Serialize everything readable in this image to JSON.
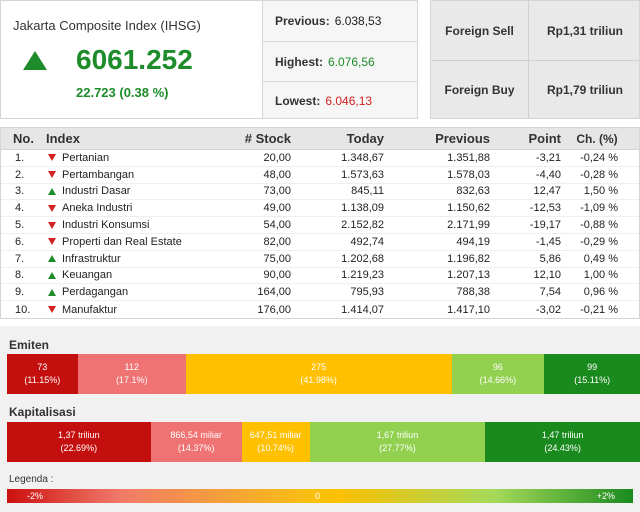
{
  "index": {
    "title": "Jakarta Composite Index (IHSG)",
    "value": "6061.252",
    "change": "22.723 (0.38 %)"
  },
  "stats": [
    {
      "label": "Previous:",
      "value": "6.038,53",
      "color": "#222222"
    },
    {
      "label": "Highest:",
      "value": "6.076,56",
      "color": "#1e8c2a"
    },
    {
      "label": "Lowest:",
      "value": "6.046,13",
      "color": "#d42121"
    }
  ],
  "foreign": [
    {
      "label": "Foreign Sell",
      "value": "Rp1,31 triliun"
    },
    {
      "label": "Foreign Buy",
      "value": "Rp1,79 triliun"
    }
  ],
  "table": {
    "headers": [
      "No.",
      "Index",
      "# Stock",
      "Today",
      "Previous",
      "Point",
      "Ch. (%)"
    ],
    "rows": [
      {
        "no": "1.",
        "dir": "down",
        "name": "Pertanian",
        "stock": "20,00",
        "today": "1.348,67",
        "prev": "1.351,88",
        "point": "-3,21",
        "ch": "-0,24 %"
      },
      {
        "no": "2.",
        "dir": "down",
        "name": "Pertambangan",
        "stock": "48,00",
        "today": "1.573,63",
        "prev": "1.578,03",
        "point": "-4,40",
        "ch": "-0,28 %"
      },
      {
        "no": "3.",
        "dir": "up",
        "name": "Industri Dasar",
        "stock": "73,00",
        "today": "845,11",
        "prev": "832,63",
        "point": "12,47",
        "ch": "1,50 %"
      },
      {
        "no": "4.",
        "dir": "down",
        "name": "Aneka Industri",
        "stock": "49,00",
        "today": "1.138,09",
        "prev": "1.150,62",
        "point": "-12,53",
        "ch": "-1,09 %"
      },
      {
        "no": "5.",
        "dir": "down",
        "name": "Industri Konsumsi",
        "stock": "54,00",
        "today": "2.152,82",
        "prev": "2.171,99",
        "point": "-19,17",
        "ch": "-0,88 %"
      },
      {
        "no": "6.",
        "dir": "down",
        "name": "Properti dan Real Estate",
        "stock": "82,00",
        "today": "492,74",
        "prev": "494,19",
        "point": "-1,45",
        "ch": "-0,29 %"
      },
      {
        "no": "7.",
        "dir": "up",
        "name": "Infrastruktur",
        "stock": "75,00",
        "today": "1.202,68",
        "prev": "1.196,82",
        "point": "5,86",
        "ch": "0,49 %"
      },
      {
        "no": "8.",
        "dir": "up",
        "name": "Keuangan",
        "stock": "90,00",
        "today": "1.219,23",
        "prev": "1.207,13",
        "point": "12,10",
        "ch": "1,00 %"
      },
      {
        "no": "9.",
        "dir": "up",
        "name": "Perdagangan",
        "stock": "164,00",
        "today": "795,93",
        "prev": "788,38",
        "point": "7,54",
        "ch": "0,96 %"
      },
      {
        "no": "10.",
        "dir": "down",
        "name": "Manufaktur",
        "stock": "176,00",
        "today": "1.414,07",
        "prev": "1.417,10",
        "point": "-3,02",
        "ch": "-0,21 %"
      }
    ]
  },
  "emiten": {
    "title": "Emiten",
    "segments": [
      {
        "value": "73",
        "pct": "(11.15%)",
        "share": 11.15,
        "color": "#c40f0f"
      },
      {
        "value": "112",
        "pct": "(17.1%)",
        "share": 17.1,
        "color": "#f07373"
      },
      {
        "value": "275",
        "pct": "(41.98%)",
        "share": 41.98,
        "color": "#ffc000"
      },
      {
        "value": "96",
        "pct": "(14.66%)",
        "share": 14.66,
        "color": "#92d050"
      },
      {
        "value": "99",
        "pct": "(15.11%)",
        "share": 15.11,
        "color": "#1a8a1e"
      }
    ]
  },
  "kapitalisasi": {
    "title": "Kapitalisasi",
    "segments": [
      {
        "value": "1,37 triliun",
        "pct": "(22.69%)",
        "share": 22.69,
        "color": "#c40f0f"
      },
      {
        "value": "866,54 miliar",
        "pct": "(14.37%)",
        "share": 14.37,
        "color": "#f07373"
      },
      {
        "value": "647,51 miliar",
        "pct": "(10.74%)",
        "share": 10.74,
        "color": "#ffc000"
      },
      {
        "value": "1,67 triliun",
        "pct": "(27.77%)",
        "share": 27.77,
        "color": "#92d050"
      },
      {
        "value": "1,47 triliun",
        "pct": "(24.43%)",
        "share": 24.43,
        "color": "#1a8a1e"
      }
    ]
  },
  "legend": {
    "title": "Legenda :",
    "min": "-2%",
    "mid": "0",
    "max": "+2%"
  }
}
